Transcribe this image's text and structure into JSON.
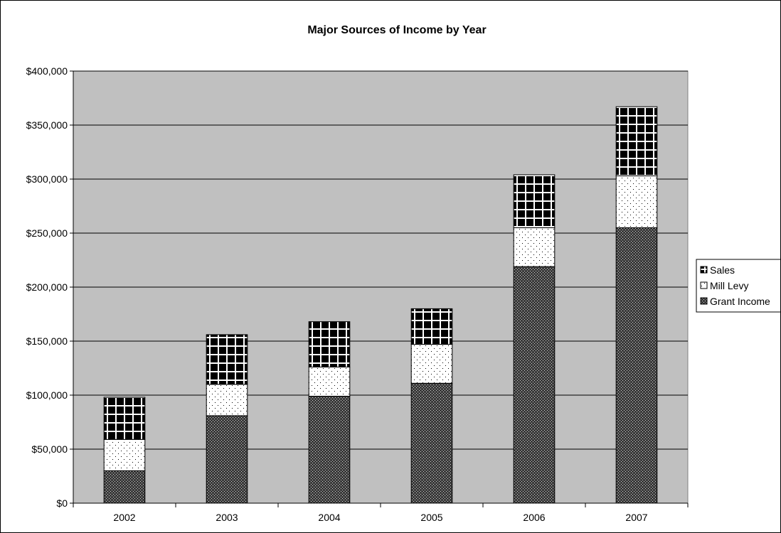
{
  "chart_data": {
    "type": "bar",
    "stacked": true,
    "title": "Major Sources of Income by Year",
    "xlabel": "",
    "ylabel": "",
    "categories": [
      "2002",
      "2003",
      "2004",
      "2005",
      "2006",
      "2007"
    ],
    "ylim": [
      0,
      400000
    ],
    "yticks": [
      0,
      50000,
      100000,
      150000,
      200000,
      250000,
      300000,
      350000,
      400000
    ],
    "ytick_labels": [
      "$0",
      "$50,000",
      "$100,000",
      "$150,000",
      "$200,000",
      "$250,000",
      "$300,000",
      "$350,000",
      "$400,000"
    ],
    "grid": true,
    "plot_background": "#c0c0c0",
    "legend_position": "right",
    "series": [
      {
        "name": "Grant Income",
        "pattern": "dense-dots",
        "values": [
          30000,
          81000,
          99000,
          111000,
          219000,
          255000
        ]
      },
      {
        "name": "Mill Levy",
        "pattern": "sparse-dots",
        "values": [
          29000,
          29000,
          27000,
          36000,
          36000,
          48000
        ]
      },
      {
        "name": "Sales",
        "pattern": "black-grid",
        "values": [
          39000,
          46000,
          42000,
          33000,
          49000,
          64000
        ]
      }
    ],
    "legend_order": [
      "Sales",
      "Mill Levy",
      "Grant Income"
    ]
  }
}
